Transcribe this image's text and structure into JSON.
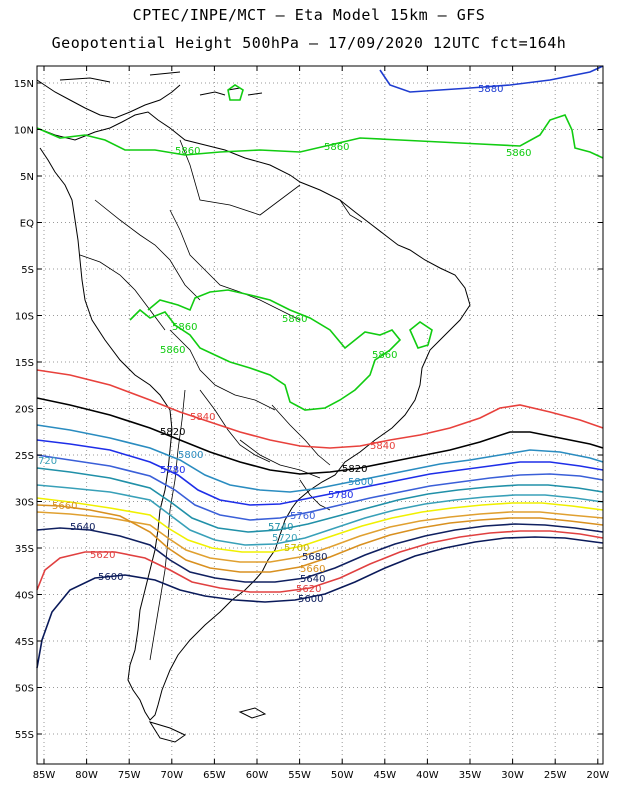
{
  "header": {
    "line1": "CPTEC/INPE/MCT –  Eta Model 15km – GFS",
    "line2": "Geopotential Height 500hPa – 17/09/2020 12UTC fct=164h"
  },
  "axes": {
    "lat_labels": [
      "15N",
      "10N",
      "5N",
      "EQ",
      "5S",
      "10S",
      "15S",
      "20S",
      "25S",
      "30S",
      "35S",
      "40S",
      "45S",
      "50S",
      "55S"
    ],
    "lon_labels": [
      "85W",
      "80W",
      "75W",
      "70W",
      "65W",
      "60W",
      "55W",
      "50W",
      "45W",
      "40W",
      "35W",
      "30W",
      "25W",
      "20W"
    ]
  },
  "contours": [
    {
      "value": "5880",
      "color": "#1e3cd0"
    },
    {
      "value": "5860",
      "color": "#11cc11"
    },
    {
      "value": "5840",
      "color": "#e8413c"
    },
    {
      "value": "5820",
      "color": "#000000"
    },
    {
      "value": "5800",
      "color": "#2a8cc0"
    },
    {
      "value": "5780",
      "color": "#1e2ee8"
    },
    {
      "value": "5760",
      "color": "#3a5fd8"
    },
    {
      "value": "5740",
      "color": "#2090a8"
    },
    {
      "value": "5720",
      "color": "#38a0b8"
    },
    {
      "value": "5700",
      "color": "#f0f000"
    },
    {
      "value": "5680",
      "color": "#e0a030"
    },
    {
      "value": "5660",
      "color": "#d89020"
    },
    {
      "value": "5640",
      "color": "#102060"
    },
    {
      "value": "5620",
      "color": "#e04040"
    },
    {
      "value": "5600",
      "color": "#0a1a5a"
    }
  ],
  "labels": {
    "g5880": "5880",
    "g5860a": "5860",
    "g5860b": "5860",
    "g5860c": "5860",
    "g5860d": "5860",
    "g5860e": "5860",
    "g5860f": "5860",
    "g5860g": "5860",
    "r5840a": "5840",
    "r5840b": "5840",
    "k5820a": "5820",
    "k5820b": "5820",
    "c5800a": "5800",
    "c5800b": "5800",
    "b5780a": "5780",
    "b5780b": "5780",
    "b5760": "5760",
    "c5740": "5740",
    "c5720": "5720",
    "c5720w": "720",
    "y5700": "5700",
    "o5680": "5680",
    "o5660a": "5660",
    "o5660b": "5660",
    "n5640a": "5640",
    "n5640b": "5640",
    "r5620a": "5620",
    "r5620b": "5620",
    "n5600a": "5600",
    "n5600b": "5600"
  }
}
